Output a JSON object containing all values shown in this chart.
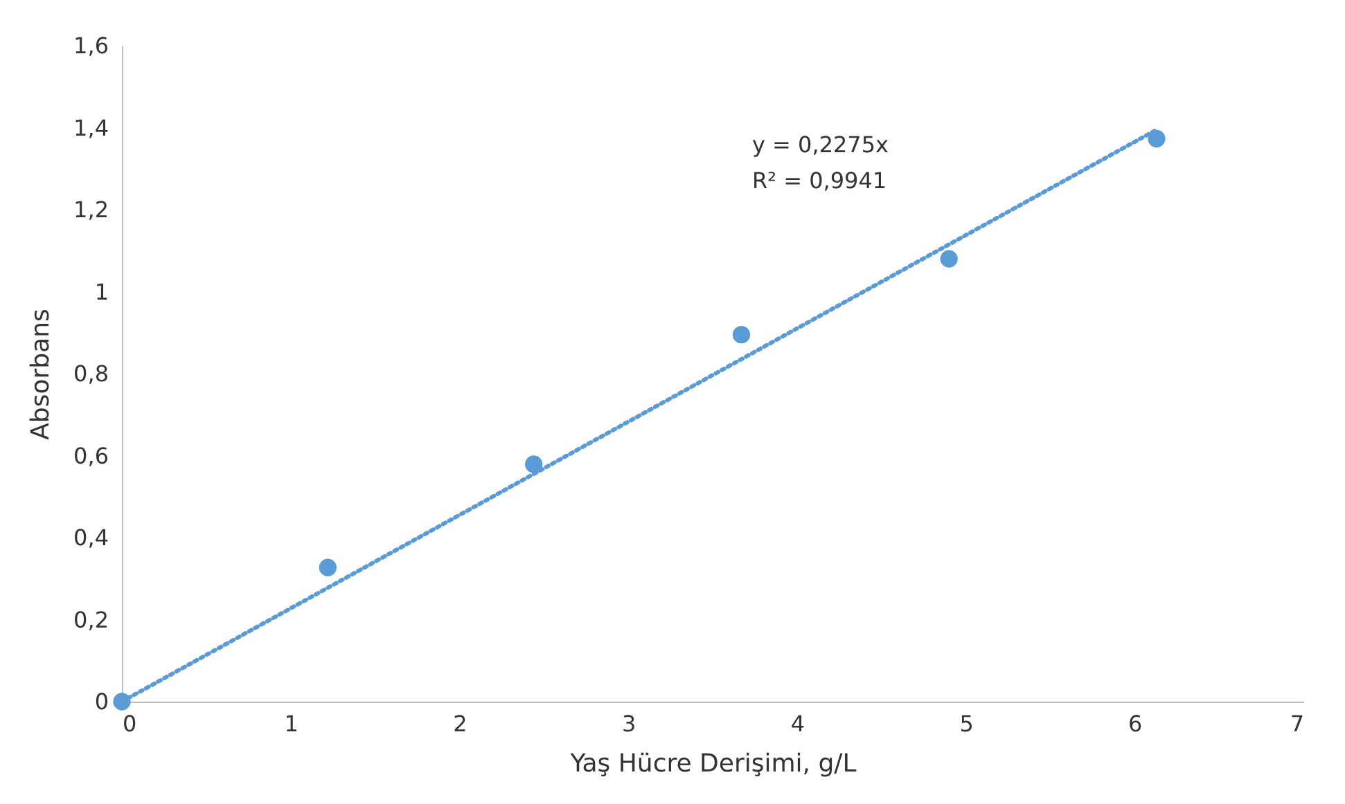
{
  "chart_data": {
    "type": "scatter",
    "xlabel": "Yaş Hücre Derişimi, g/L",
    "ylabel": "Absorbans",
    "series": [
      {
        "type": "line",
        "color": "#5b9bd5",
        "line_style": "dotted",
        "marker": "none",
        "x": [
          0,
          6.13
        ],
        "values": [
          0,
          1.395
        ]
      },
      {
        "color": "#5b9bd5",
        "marker": "circle",
        "x": [
          0,
          1.22,
          2.44,
          3.67,
          4.9,
          6.13
        ],
        "values": [
          0,
          0.327,
          0.579,
          0.895,
          1.08,
          1.373
        ]
      }
    ],
    "xlim": [
      0,
      7
    ],
    "xticks": [
      0,
      1,
      2,
      3,
      4,
      5,
      6,
      7
    ],
    "ylim": [
      0,
      1.6
    ],
    "yticks": [
      0,
      {
        "value": 0.2,
        "label": "0,2"
      },
      {
        "value": 0.4,
        "label": "0,4"
      },
      {
        "value": 0.6,
        "label": "0,6"
      },
      {
        "value": 0.8,
        "label": "0,8"
      },
      1,
      {
        "value": 1.2,
        "label": "1,2"
      },
      {
        "value": 1.4,
        "label": "1,4"
      },
      {
        "value": 1.6,
        "label": "1,6"
      }
    ],
    "annotations": [
      "y = 0,2275x",
      "R² = 0,9941"
    ]
  }
}
